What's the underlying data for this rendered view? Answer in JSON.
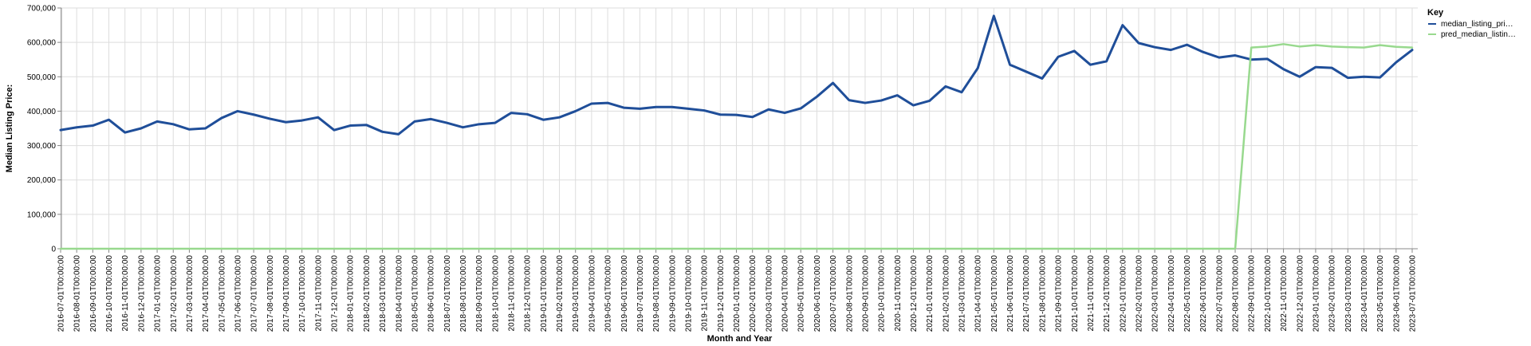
{
  "chart_data": {
    "type": "line",
    "title": "",
    "xlabel": "Month and Year",
    "ylabel": "Median Listing Price:",
    "ylim": [
      0,
      700000
    ],
    "y_ticks": [
      "0",
      "100,000",
      "200,000",
      "300,000",
      "400,000",
      "500,000",
      "600,000",
      "700,000"
    ],
    "grid": true,
    "legend": {
      "title": "Key",
      "position": "top-right"
    },
    "x": [
      "2016-07-01T00:00:00",
      "2016-08-01T00:00:00",
      "2016-09-01T00:00:00",
      "2016-10-01T00:00:00",
      "2016-11-01T00:00:00",
      "2016-12-01T00:00:00",
      "2017-01-01T00:00:00",
      "2017-02-01T00:00:00",
      "2017-03-01T00:00:00",
      "2017-04-01T00:00:00",
      "2017-05-01T00:00:00",
      "2017-06-01T00:00:00",
      "2017-07-01T00:00:00",
      "2017-08-01T00:00:00",
      "2017-09-01T00:00:00",
      "2017-10-01T00:00:00",
      "2017-11-01T00:00:00",
      "2017-12-01T00:00:00",
      "2018-01-01T00:00:00",
      "2018-02-01T00:00:00",
      "2018-03-01T00:00:00",
      "2018-04-01T00:00:00",
      "2018-05-01T00:00:00",
      "2018-06-01T00:00:00",
      "2018-07-01T00:00:00",
      "2018-08-01T00:00:00",
      "2018-09-01T00:00:00",
      "2018-10-01T00:00:00",
      "2018-11-01T00:00:00",
      "2018-12-01T00:00:00",
      "2019-01-01T00:00:00",
      "2019-02-01T00:00:00",
      "2019-03-01T00:00:00",
      "2019-04-01T00:00:00",
      "2019-05-01T00:00:00",
      "2019-06-01T00:00:00",
      "2019-07-01T00:00:00",
      "2019-08-01T00:00:00",
      "2019-09-01T00:00:00",
      "2019-10-01T00:00:00",
      "2019-11-01T00:00:00",
      "2019-12-01T00:00:00",
      "2020-01-01T00:00:00",
      "2020-02-01T00:00:00",
      "2020-03-01T00:00:00",
      "2020-04-01T00:00:00",
      "2020-05-01T00:00:00",
      "2020-06-01T00:00:00",
      "2020-07-01T00:00:00",
      "2020-08-01T00:00:00",
      "2020-09-01T00:00:00",
      "2020-10-01T00:00:00",
      "2020-11-01T00:00:00",
      "2020-12-01T00:00:00",
      "2021-01-01T00:00:00",
      "2021-02-01T00:00:00",
      "2021-03-01T00:00:00",
      "2021-04-01T00:00:00",
      "2021-05-01T00:00:00",
      "2021-06-01T00:00:00",
      "2021-07-01T00:00:00",
      "2021-08-01T00:00:00",
      "2021-09-01T00:00:00",
      "2021-10-01T00:00:00",
      "2021-11-01T00:00:00",
      "2021-12-01T00:00:00",
      "2022-01-01T00:00:00",
      "2022-02-01T00:00:00",
      "2022-03-01T00:00:00",
      "2022-04-01T00:00:00",
      "2022-05-01T00:00:00",
      "2022-06-01T00:00:00",
      "2022-07-01T00:00:00",
      "2022-08-01T00:00:00",
      "2022-09-01T00:00:00",
      "2022-10-01T00:00:00",
      "2022-11-01T00:00:00",
      "2022-12-01T00:00:00",
      "2023-01-01T00:00:00",
      "2023-02-01T00:00:00",
      "2023-03-01T00:00:00",
      "2023-04-01T00:00:00",
      "2023-05-01T00:00:00",
      "2023-06-01T00:00:00",
      "2023-07-01T00:00:00"
    ],
    "series": [
      {
        "name": "median_listing_price",
        "legend_label": "median_listing_pri…",
        "color": "#1f4e99",
        "values": [
          345000,
          353000,
          358000,
          375000,
          338000,
          350000,
          370000,
          362000,
          347000,
          350000,
          380000,
          400000,
          390000,
          378000,
          368000,
          373000,
          382000,
          345000,
          358000,
          360000,
          340000,
          333000,
          370000,
          377000,
          366000,
          353000,
          362000,
          366000,
          395000,
          391000,
          375000,
          382000,
          400000,
          422000,
          424000,
          410000,
          407000,
          412000,
          412000,
          407000,
          402000,
          390000,
          389000,
          383000,
          405000,
          395000,
          408000,
          442000,
          482000,
          432000,
          424000,
          431000,
          446000,
          417000,
          430000,
          472000,
          455000,
          525000,
          677000,
          535000,
          515000,
          495000,
          558000,
          575000,
          535000,
          545000,
          650000,
          598000,
          586000,
          578000,
          593000,
          572000,
          556000,
          562000,
          550000,
          552000,
          522000,
          500000,
          528000,
          526000,
          497000,
          500000,
          498000,
          542000,
          578000
        ]
      },
      {
        "name": "pred_median_listing",
        "legend_label": "pred_median_listin…",
        "color": "#98d98e",
        "values": [
          0,
          0,
          0,
          0,
          0,
          0,
          0,
          0,
          0,
          0,
          0,
          0,
          0,
          0,
          0,
          0,
          0,
          0,
          0,
          0,
          0,
          0,
          0,
          0,
          0,
          0,
          0,
          0,
          0,
          0,
          0,
          0,
          0,
          0,
          0,
          0,
          0,
          0,
          0,
          0,
          0,
          0,
          0,
          0,
          0,
          0,
          0,
          0,
          0,
          0,
          0,
          0,
          0,
          0,
          0,
          0,
          0,
          0,
          0,
          0,
          0,
          0,
          0,
          0,
          0,
          0,
          0,
          0,
          0,
          0,
          0,
          0,
          0,
          0,
          585000,
          588000,
          595000,
          588000,
          592000,
          588000,
          586000,
          585000,
          592000,
          587000,
          585000
        ]
      }
    ]
  }
}
